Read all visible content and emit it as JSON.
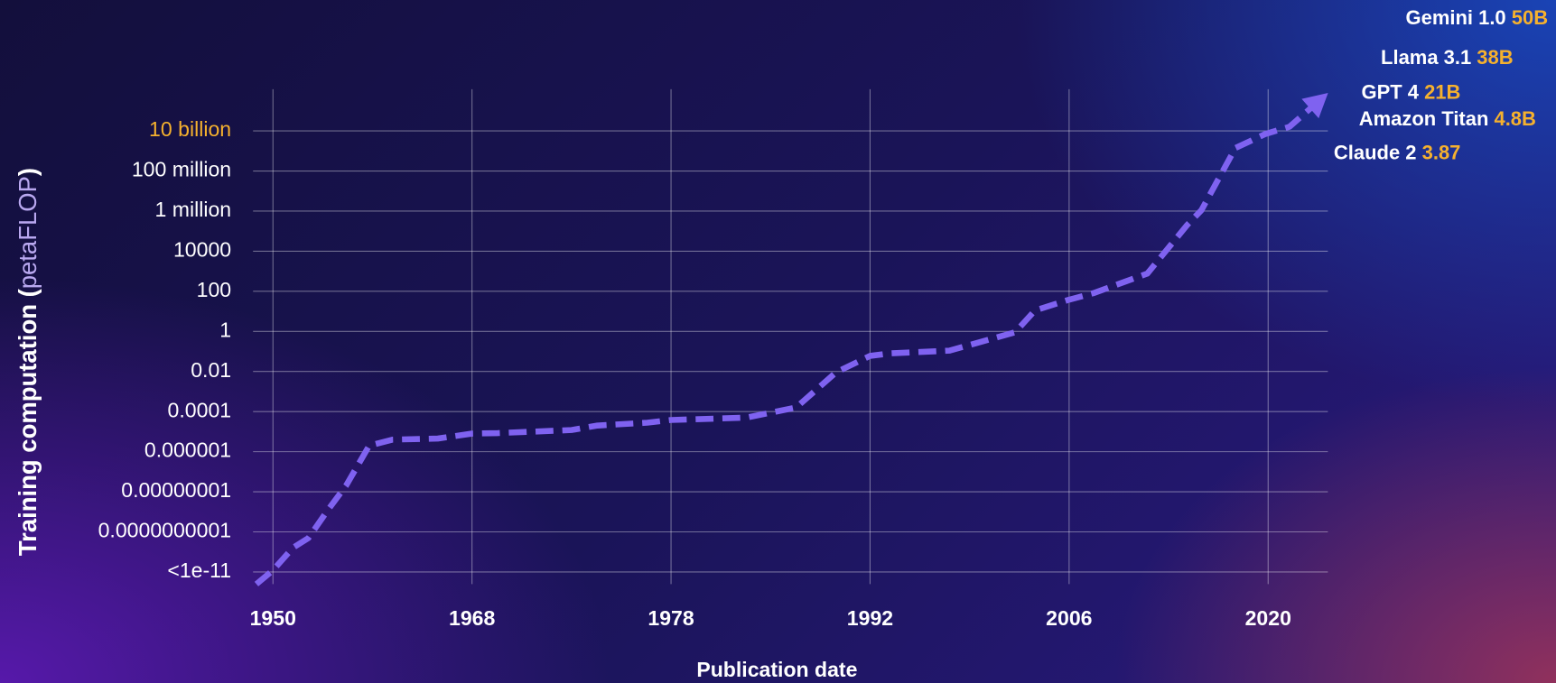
{
  "chart_data": {
    "type": "line",
    "xlabel": "Publication date",
    "ylabel_parts": [
      "Training computation (",
      "petaFLOP",
      ")"
    ],
    "yscale": "log",
    "grid": true,
    "xlim": [
      1948.2,
      2024.2
    ],
    "xticks": [
      1950,
      1968,
      1978,
      1992,
      2006,
      2020
    ],
    "ylim": [
      5e-12,
      1200000000000.0
    ],
    "yticks": [
      {
        "value": 1e-11,
        "label": "<1e-11"
      },
      {
        "value": 1e-10,
        "label": "0.0000000001"
      },
      {
        "value": 1e-08,
        "label": "0.00000001"
      },
      {
        "value": 1e-06,
        "label": "0.000001"
      },
      0.0001,
      0.01,
      1,
      100,
      10000,
      {
        "value": 1000000,
        "label": "1 million"
      },
      {
        "value": 100000000,
        "label": "100 million"
      },
      {
        "value": 10000000000,
        "label": "10 billion",
        "color": "#f5b12e"
      }
    ],
    "color": "#7f62f0",
    "x": [
      1948.5,
      1950,
      1951.8,
      1953.2,
      1955,
      1956.6,
      1958.7,
      1960.8,
      1964.9,
      1968,
      1969.3,
      1973,
      1974.3,
      1976.8,
      1978,
      1983.3,
      1986.8,
      1989.6,
      1992,
      1993.4,
      1997.6,
      2002.2,
      2003.6,
      2006,
      2007.7,
      2011.5,
      2014.3,
      2015.3,
      2017.7,
      2019.8,
      2021.5,
      2023.9
    ],
    "values": [
      5e-12,
      1.1e-11,
      4e-11,
      7e-11,
      1.3e-09,
      2e-08,
      2e-06,
      4e-06,
      4.5e-06,
      8e-06,
      8.5e-06,
      1.2e-05,
      2e-05,
      2.8e-05,
      3.8e-05,
      5e-05,
      0.00016,
      0.009,
      0.06,
      0.08,
      0.11,
      0.9,
      11,
      38,
      80,
      760,
      200000,
      1100000,
      1400000000,
      7000000000,
      16000000000,
      500000000000
    ],
    "annotations": [
      {
        "text": "Gemini 1.0",
        "value_label": "50B"
      },
      {
        "text": "Llama 3.1",
        "value_label": "38B"
      },
      {
        "text": "GPT 4",
        "value_label": "21B"
      },
      {
        "text": "Amazon Titan",
        "value_label": "4.8B"
      },
      {
        "text": "Claude 2",
        "value_label": "3.87"
      }
    ],
    "annotation_value_color": "#f5b12e"
  }
}
